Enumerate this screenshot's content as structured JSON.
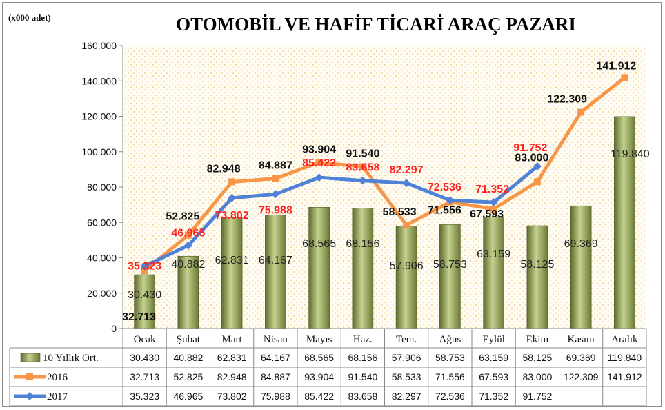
{
  "chart_data": {
    "type": "bar",
    "title": "OTOMOBİL VE HAFİF TİCARİ ARAÇ PAZARI",
    "unit_label": "(x000 adet)",
    "categories": [
      "Ocak",
      "Şubat",
      "Mart",
      "Nisan",
      "Mayıs",
      "Haz.",
      "Tem.",
      "Ağus",
      "Eylül",
      "Ekim",
      "Kasım",
      "Aralık"
    ],
    "ylim": [
      0,
      160000
    ],
    "yticks": [
      0,
      20000,
      40000,
      60000,
      80000,
      100000,
      120000,
      140000,
      160000
    ],
    "ytick_labels": [
      "0",
      "20.000",
      "40.000",
      "60.000",
      "80.000",
      "100.000",
      "120.000",
      "140.000",
      "160.000"
    ],
    "grid": "dotted-background",
    "legend_position": "table-below",
    "series": [
      {
        "name": "10 Yıllık Ort.",
        "type": "bar",
        "color": "#8a9a52",
        "values": [
          30430,
          40882,
          62831,
          64167,
          68565,
          68156,
          57906,
          58753,
          63159,
          58125,
          69369,
          119840
        ],
        "labels": [
          "30.430",
          "40.882",
          "62.831",
          "64.167",
          "68.565",
          "68.156",
          "57.906",
          "58.753",
          "63.159",
          "58.125",
          "69.369",
          "119.840"
        ]
      },
      {
        "name": "2016",
        "type": "line",
        "color": "#f79646",
        "values": [
          32713,
          52825,
          82948,
          84887,
          93904,
          91540,
          58533,
          71556,
          67593,
          83000,
          122309,
          141912
        ],
        "labels": [
          "32.713",
          "52.825",
          "82.948",
          "84.887",
          "93.904",
          "91.540",
          "58.533",
          "71.556",
          "67.593",
          "83.000",
          "122.309",
          "141.912"
        ]
      },
      {
        "name": "2017",
        "type": "line",
        "color": "#4f81d6",
        "values": [
          35323,
          46965,
          73802,
          75988,
          85422,
          83658,
          82297,
          72536,
          71352,
          91752,
          null,
          null
        ],
        "labels": [
          "35.323",
          "46.965",
          "73.802",
          "75.988",
          "85.422",
          "83.658",
          "82.297",
          "72.536",
          "71.352",
          "91.752",
          "",
          ""
        ]
      }
    ]
  }
}
